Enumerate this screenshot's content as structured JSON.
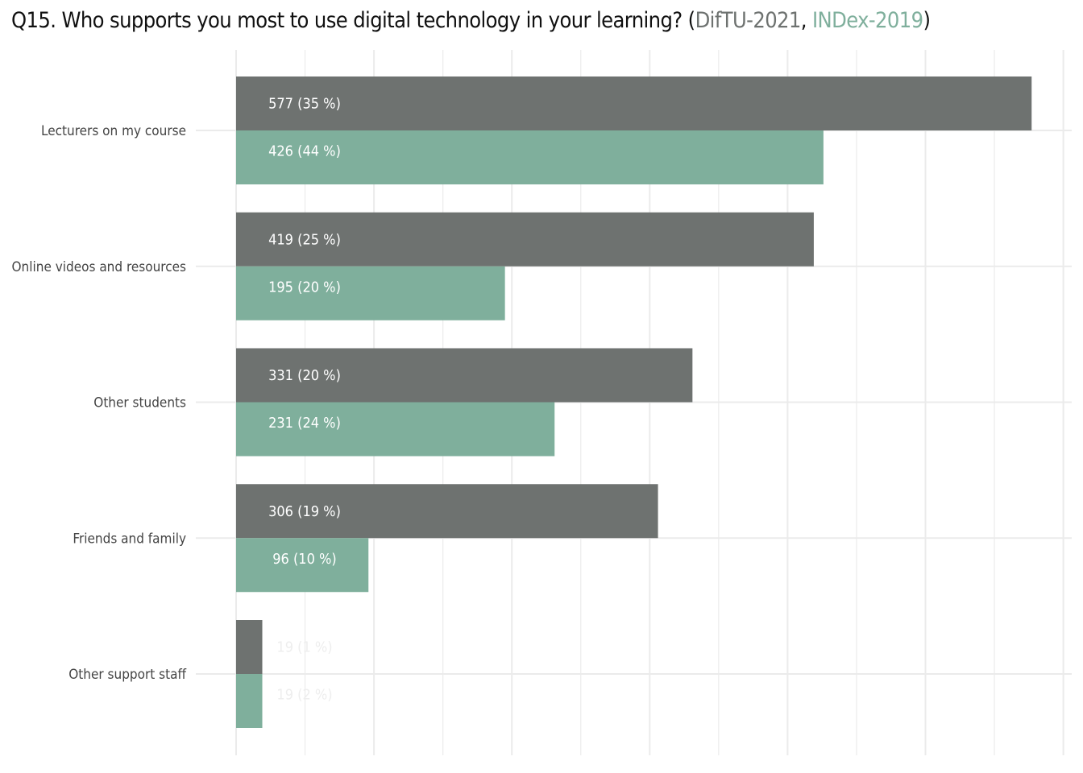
{
  "title": {
    "prefix": "Q15. Who supports you most to use digital technology in your learning? (",
    "series_a": "DifTU-2021",
    "separator": ", ",
    "series_b": "INDex-2019",
    "suffix": ")"
  },
  "colors": {
    "series_a": "#6e7270",
    "series_b": "#7faf9c",
    "label_text": "#ffffff",
    "label_text_small": "#eeeeee",
    "grid": "#ebebeb",
    "category_text": "#444444"
  },
  "chart_data": {
    "type": "bar",
    "orientation": "horizontal",
    "categories": [
      "Lecturers on my course",
      "Online videos and resources",
      "Other students",
      "Friends and family",
      "Other support staff"
    ],
    "series": [
      {
        "name": "DifTU-2021",
        "values": [
          577,
          419,
          331,
          306,
          19
        ],
        "percents": [
          35,
          25,
          20,
          19,
          1
        ],
        "labels": [
          "577  (35 %)",
          "419  (25 %)",
          "331  (20 %)",
          "306  (19 %)",
          "19  (1 %)"
        ]
      },
      {
        "name": "INDex-2019",
        "values": [
          426,
          195,
          231,
          96,
          19
        ],
        "percents": [
          44,
          20,
          24,
          10,
          2
        ],
        "labels": [
          "426  (44 %)",
          "195  (20 %)",
          "231  (24 %)",
          "96  (10 %)",
          "19  (2 %)"
        ]
      }
    ],
    "xlim": [
      0,
      600
    ],
    "x_grid_step": 100,
    "grid": true,
    "legend": "title",
    "xlabel": "",
    "ylabel": ""
  }
}
